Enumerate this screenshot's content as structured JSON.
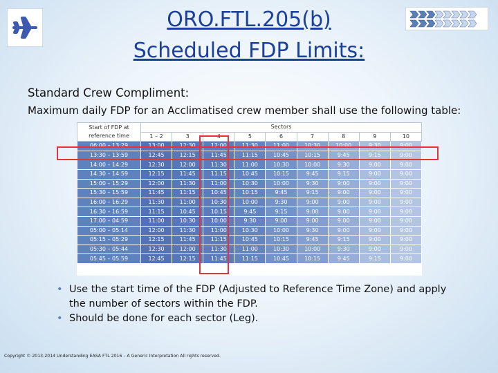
{
  "title_line1": "ORO.FTL.205(b)",
  "title_line2": "Scheduled FDP Limits:",
  "subtitle": "Standard Crew Compliment:",
  "intro": "Maximum daily FDP for an Acclimatised crew member shall use the following table:",
  "table": {
    "corner_label_line1": "Start of FDP at",
    "corner_label_line2": "reference time",
    "sectors_label": "Sectors",
    "columns": [
      "1 – 2",
      "3",
      "4",
      "5",
      "6",
      "7",
      "8",
      "9",
      "10"
    ],
    "rows": [
      {
        "time": "06:00 – 13:29",
        "values": [
          "13:00",
          "12:30",
          "12:00",
          "11:30",
          "11:00",
          "10:30",
          "10:00",
          "9:30",
          "9:00"
        ]
      },
      {
        "time": "13:30 – 13:59",
        "values": [
          "12:45",
          "12:15",
          "11:45",
          "11:15",
          "10:45",
          "10:15",
          "9:45",
          "9:15",
          "9:00"
        ]
      },
      {
        "time": "14:00 – 14:29",
        "values": [
          "12:30",
          "12:00",
          "11:30",
          "11:00",
          "10:30",
          "10:00",
          "9:30",
          "9:00",
          "9:00"
        ]
      },
      {
        "time": "14:30 – 14:59",
        "values": [
          "12:15",
          "11:45",
          "11:15",
          "10:45",
          "10:15",
          "9:45",
          "9:15",
          "9:00",
          "9:00"
        ]
      },
      {
        "time": "15:00 – 15:29",
        "values": [
          "12:00",
          "11:30",
          "11:00",
          "10:30",
          "10:00",
          "9:30",
          "9:00",
          "9:00",
          "9:00"
        ]
      },
      {
        "time": "15:30 – 15:59",
        "values": [
          "11:45",
          "11:15",
          "10:45",
          "10:15",
          "9:45",
          "9:15",
          "9:00",
          "9:00",
          "9:00"
        ]
      },
      {
        "time": "16:00 – 16:29",
        "values": [
          "11:30",
          "11:00",
          "10:30",
          "10:00",
          "9:30",
          "9:00",
          "9:00",
          "9:00",
          "9:00"
        ]
      },
      {
        "time": "16:30 – 16:59",
        "values": [
          "11:15",
          "10:45",
          "10:15",
          "9:45",
          "9:15",
          "9:00",
          "9:00",
          "9:00",
          "9:00"
        ]
      },
      {
        "time": "17:00 – 04:59",
        "values": [
          "11:00",
          "10:30",
          "10:00",
          "9:30",
          "9:00",
          "9:00",
          "9:00",
          "9:00",
          "9:00"
        ]
      },
      {
        "time": "05:00 – 05:14",
        "values": [
          "12:00",
          "11:30",
          "11:00",
          "10:30",
          "10:00",
          "9:30",
          "9:00",
          "9:00",
          "9:00"
        ]
      },
      {
        "time": "05:15 – 05:29",
        "values": [
          "12:15",
          "11:45",
          "11:15",
          "10:45",
          "10:15",
          "9:45",
          "9:15",
          "9:00",
          "9:00"
        ]
      },
      {
        "time": "05:30 – 05:44",
        "values": [
          "12:30",
          "12:00",
          "11:30",
          "11:00",
          "10:30",
          "10:00",
          "9:30",
          "9:00",
          "9:00"
        ]
      },
      {
        "time": "05:45 – 05:59",
        "values": [
          "12:45",
          "12:15",
          "11:45",
          "11:15",
          "10:45",
          "10:15",
          "9:45",
          "9:15",
          "9:00"
        ]
      }
    ]
  },
  "bullets": [
    {
      "line1": "Use the start time of the FDP (Adjusted to Reference Time Zone) and apply",
      "line2": "the number of sectors within the FDP."
    },
    {
      "line1": "Should be done for each sector (Leg).",
      "line2": ""
    }
  ],
  "footer": "Copyright © 2013-2014 Understanding EASA FTL 2016 – A Generic Interpretation All rights reserved.",
  "colors": {
    "title": "#1a3f9c",
    "highlight": "#e43434",
    "plane": "#3c5bb0",
    "col_shades": [
      "#4d6fb3",
      "#5272b5",
      "#5677b8",
      "#5b7bbb",
      "#6484c0",
      "#7392c8",
      "#849fcf",
      "#96aed7",
      "#a9bedf",
      "#b3c5e3"
    ]
  },
  "icons": {
    "left_logo": "airplane-icon",
    "right_logo": "chevron-arrows-icon"
  }
}
